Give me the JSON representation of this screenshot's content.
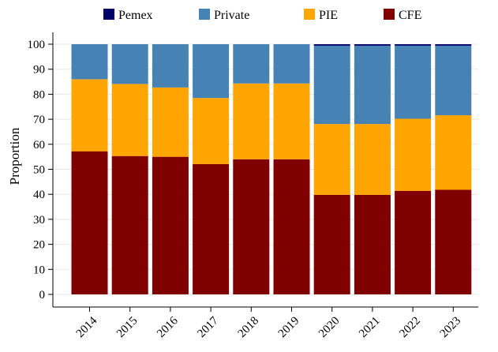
{
  "chart_data": {
    "type": "bar",
    "stacked": true,
    "title": "",
    "xlabel": "",
    "ylabel": "Proportion",
    "ylim": [
      0,
      100
    ],
    "yticks": [
      0,
      10,
      20,
      30,
      40,
      50,
      60,
      70,
      80,
      90,
      100
    ],
    "grid": true,
    "legend_position": "top",
    "categories": [
      "2014",
      "2015",
      "2016",
      "2017",
      "2018",
      "2019",
      "2020",
      "2021",
      "2022",
      "2023"
    ],
    "series": [
      {
        "name": "CFE",
        "color": "#800000",
        "values": [
          57.2,
          55.3,
          55.0,
          52.1,
          54.0,
          54.0,
          39.8,
          39.8,
          41.4,
          41.8
        ]
      },
      {
        "name": "PIE",
        "color": "#FFA500",
        "values": [
          28.8,
          28.8,
          27.7,
          26.4,
          30.3,
          30.3,
          28.3,
          28.3,
          28.8,
          29.8
        ]
      },
      {
        "name": "Private",
        "color": "#4682B4",
        "values": [
          14.0,
          15.9,
          17.3,
          21.5,
          15.7,
          15.7,
          31.3,
          31.3,
          29.2,
          27.8
        ]
      },
      {
        "name": "Pemex",
        "color": "#000066",
        "values": [
          0,
          0,
          0,
          0,
          0,
          0,
          0.6,
          0.6,
          0.6,
          0.6
        ]
      }
    ],
    "legend_order": [
      "Pemex",
      "Private",
      "PIE",
      "CFE"
    ]
  }
}
